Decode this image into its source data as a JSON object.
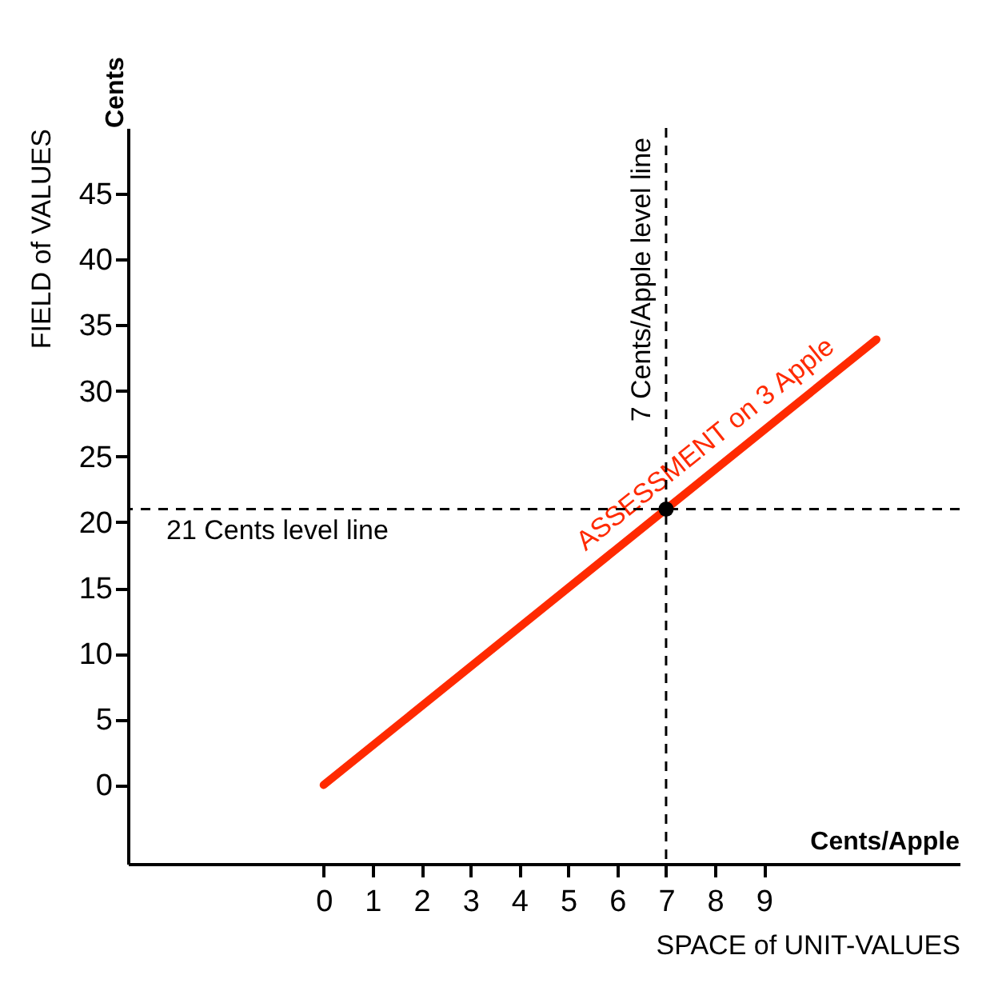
{
  "chart_data": {
    "type": "line",
    "xlabel": "SPACE of UNIT-VALUES",
    "ylabel": "FIELD of VALUES",
    "xlim": [
      -4,
      13
    ],
    "ylim": [
      -6,
      50
    ],
    "xticks": [
      0,
      1,
      2,
      3,
      4,
      5,
      6,
      7,
      8,
      9
    ],
    "yticks": [
      0,
      5,
      10,
      15,
      20,
      25,
      30,
      35,
      40,
      45
    ],
    "series": [
      {
        "name": "ASSESSMENT on 3 Apple",
        "color": "#ff2a00",
        "x": [
          0,
          11.3
        ],
        "values": [
          0,
          33.9
        ]
      },
      {
        "type": "scatter",
        "color": "#000000",
        "marker": "circle",
        "x": [
          7
        ],
        "values": [
          21
        ]
      }
    ],
    "ref_lines": [
      {
        "axis": "y",
        "value": 21,
        "label": "21 Cents  level line",
        "line_style": "dashed",
        "color": "#000000"
      },
      {
        "axis": "x",
        "value": 7,
        "label": "7 Cents/Apple  level line",
        "line_style": "dashed",
        "color": "#000000"
      }
    ],
    "annotations": [
      "Cents",
      "Cents/Apple"
    ],
    "line_style": "solid"
  }
}
